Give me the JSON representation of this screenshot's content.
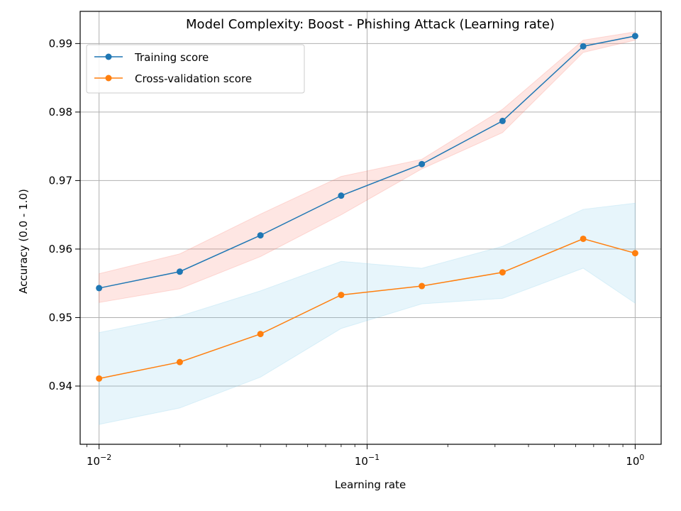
{
  "chart_data": {
    "type": "line",
    "title": "Model Complexity: Boost - Phishing Attack (Learning rate)",
    "xlabel": "Learning rate",
    "ylabel": "Accuracy (0.0 - 1.0)",
    "xscale": "log",
    "xlim": [
      0.0085,
      1.25
    ],
    "ylim": [
      0.9315,
      0.9947
    ],
    "x": [
      0.01,
      0.02,
      0.04,
      0.08,
      0.16,
      0.32,
      0.64,
      1.0
    ],
    "x_ticks": [
      {
        "value": 0.01,
        "base": "10",
        "exp": "−2"
      },
      {
        "value": 0.1,
        "base": "10",
        "exp": "−1"
      },
      {
        "value": 1.0,
        "base": "10",
        "exp": "0"
      }
    ],
    "y_ticks": [
      {
        "value": 0.94,
        "label": "0.94"
      },
      {
        "value": 0.95,
        "label": "0.95"
      },
      {
        "value": 0.96,
        "label": "0.96"
      },
      {
        "value": 0.97,
        "label": "0.97"
      },
      {
        "value": 0.98,
        "label": "0.98"
      },
      {
        "value": 0.99,
        "label": "0.99"
      }
    ],
    "grid": true,
    "legend_position": "top-left",
    "series": [
      {
        "name": "Training score",
        "color": "#1f77b4",
        "band_color": "#fa8072",
        "values": [
          0.9543,
          0.9567,
          0.962,
          0.9678,
          0.9724,
          0.9787,
          0.9896,
          0.9911
        ],
        "lower": [
          0.9522,
          0.9542,
          0.9589,
          0.965,
          0.9717,
          0.977,
          0.9887,
          0.9905
        ],
        "upper": [
          0.9564,
          0.9593,
          0.9651,
          0.9706,
          0.9731,
          0.9804,
          0.9905,
          0.9917
        ]
      },
      {
        "name": "Cross-validation score",
        "color": "#ff7f0e",
        "band_color": "#87ceeb",
        "values": [
          0.9411,
          0.9435,
          0.9476,
          0.9533,
          0.9546,
          0.9566,
          0.9615,
          0.9594
        ],
        "lower": [
          0.9344,
          0.9368,
          0.9413,
          0.9484,
          0.952,
          0.9528,
          0.9572,
          0.9521
        ],
        "upper": [
          0.9478,
          0.9502,
          0.9539,
          0.9582,
          0.9572,
          0.9604,
          0.9658,
          0.9667
        ]
      }
    ]
  }
}
